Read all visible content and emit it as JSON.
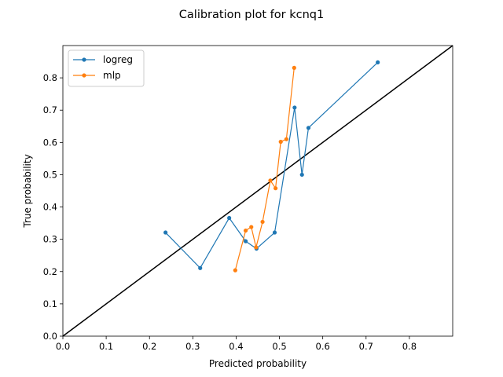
{
  "chart_data": {
    "type": "line",
    "title": "Calibration plot for kcnq1",
    "xlabel": "Predicted probability",
    "ylabel": "True probability",
    "xlim": [
      0,
      0.9
    ],
    "ylim": [
      0,
      0.9
    ],
    "xticks": [
      "0.0",
      "0.1",
      "0.2",
      "0.3",
      "0.4",
      "0.5",
      "0.6",
      "0.7",
      "0.8"
    ],
    "yticks": [
      "0.0",
      "0.1",
      "0.2",
      "0.3",
      "0.4",
      "0.5",
      "0.6",
      "0.7",
      "0.8"
    ],
    "grid": false,
    "legend_position": "top-left",
    "reference_line": {
      "x": [
        0,
        0.9
      ],
      "y": [
        0,
        0.9
      ],
      "color": "#000000"
    },
    "series": [
      {
        "name": "logreg",
        "color": "#1f77b4",
        "x": [
          0.237,
          0.317,
          0.384,
          0.422,
          0.447,
          0.489,
          0.535,
          0.552,
          0.567,
          0.727
        ],
        "y": [
          0.321,
          0.211,
          0.366,
          0.294,
          0.271,
          0.321,
          0.708,
          0.5,
          0.645,
          0.848
        ]
      },
      {
        "name": "mlp",
        "color": "#ff7f0e",
        "x": [
          0.398,
          0.422,
          0.435,
          0.446,
          0.461,
          0.479,
          0.491,
          0.503,
          0.516,
          0.534
        ],
        "y": [
          0.204,
          0.327,
          0.338,
          0.275,
          0.354,
          0.482,
          0.458,
          0.602,
          0.61,
          0.831
        ]
      }
    ]
  }
}
